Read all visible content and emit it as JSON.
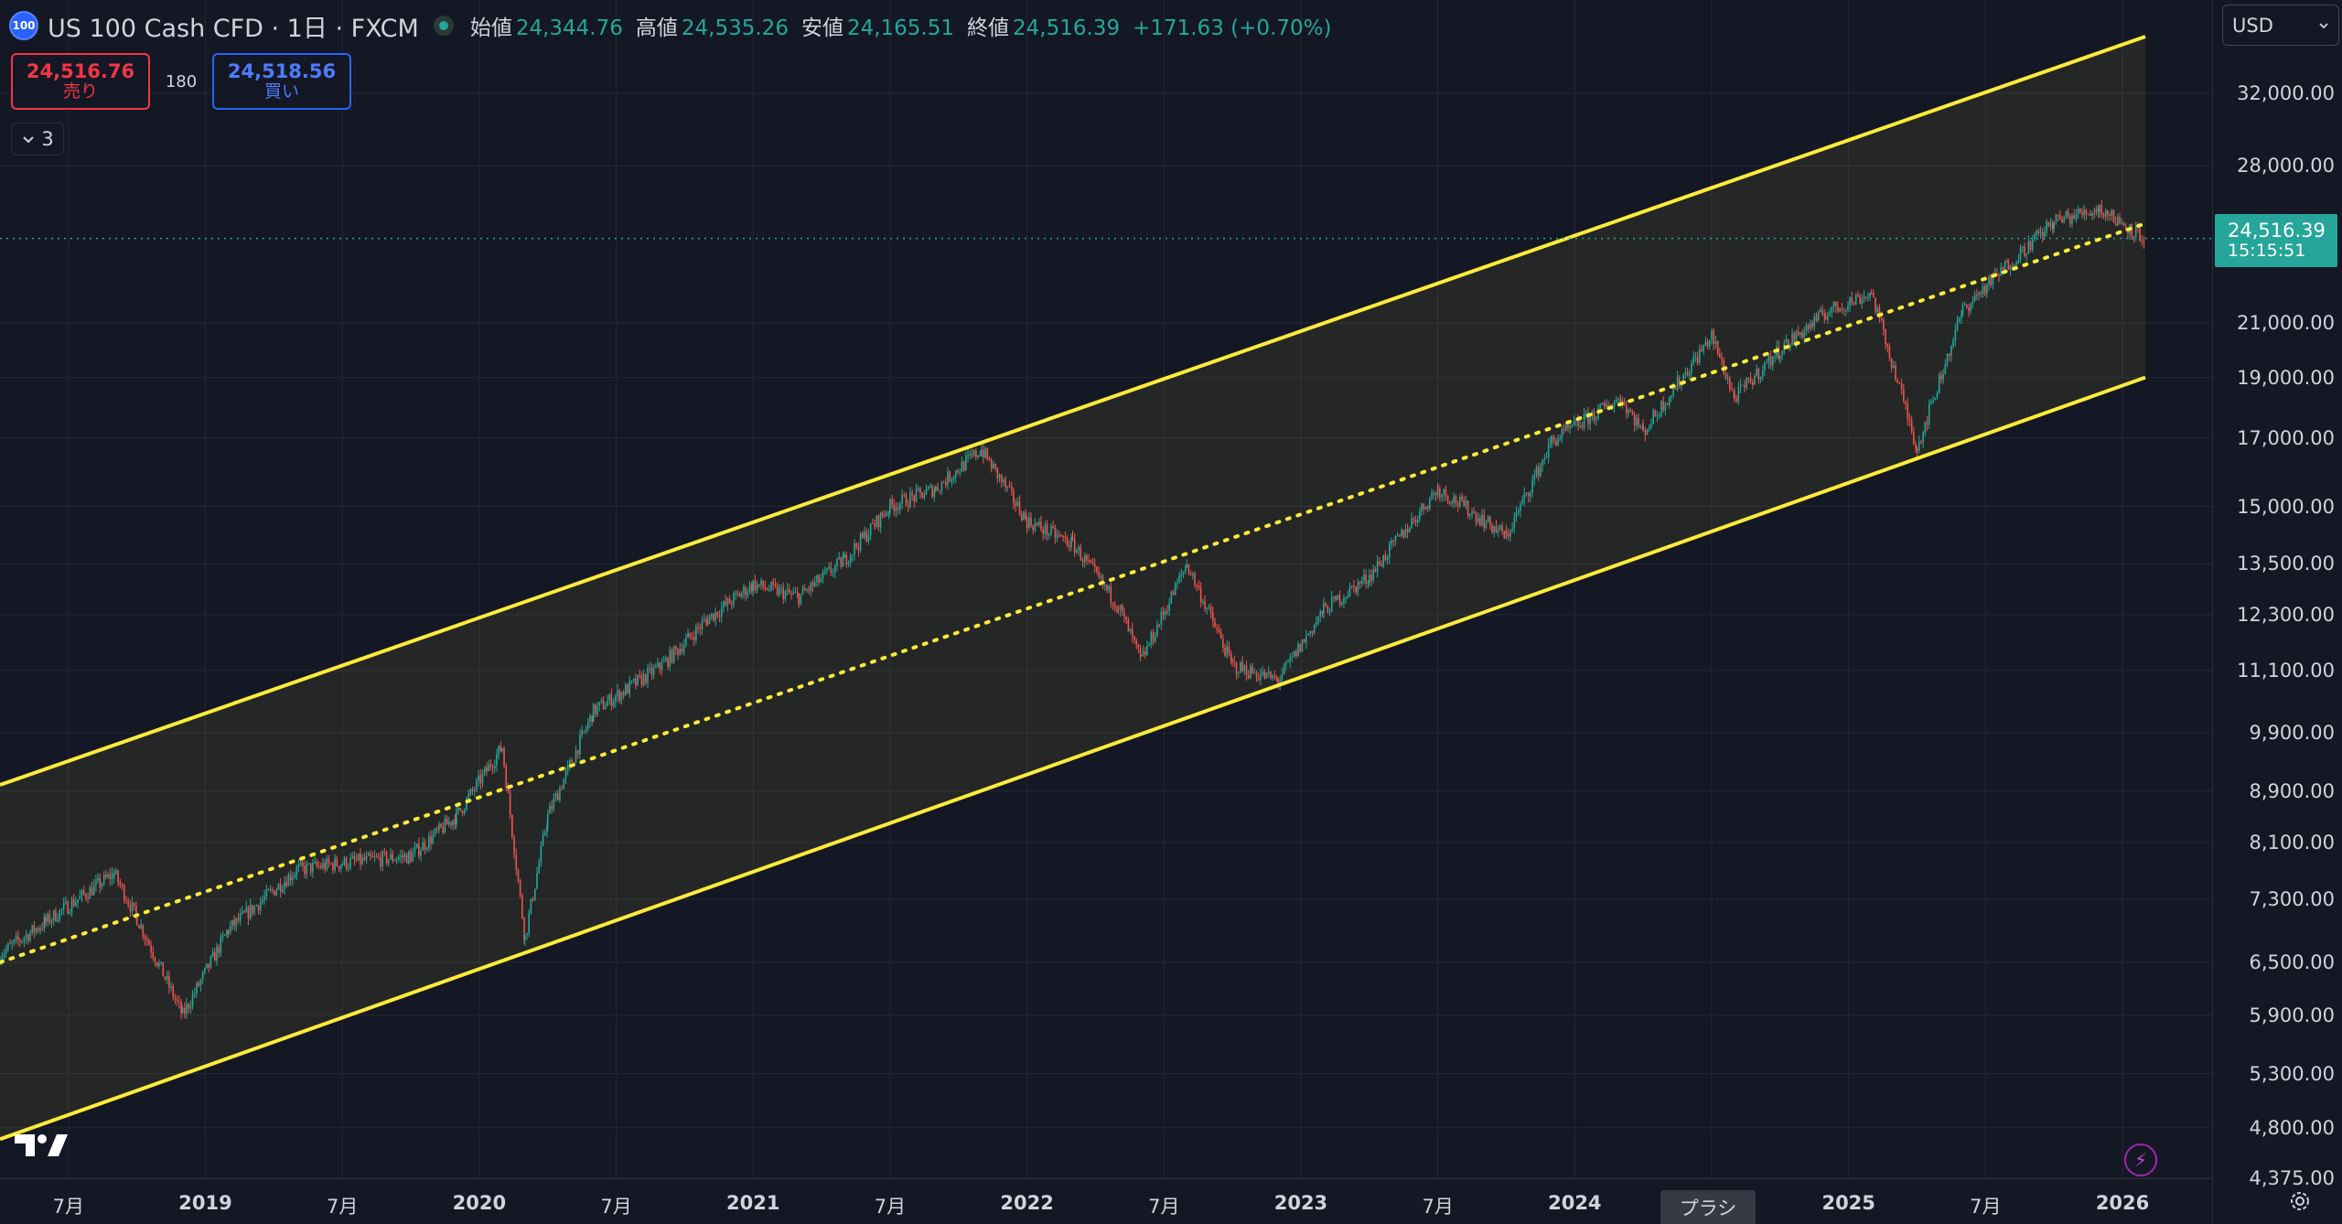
{
  "header": {
    "symbol_logo": "100",
    "symbol_title": "US 100 Cash CFD · 1日 · FXCM",
    "open_label": "始値",
    "open_value": "24,344.76",
    "high_label": "高値",
    "high_value": "24,535.26",
    "low_label": "安値",
    "low_value": "24,165.51",
    "close_label": "終値",
    "close_value": "24,516.39",
    "change": "+171.63 (+0.70%)",
    "status_color": "#26a69a"
  },
  "trade": {
    "sell_price": "24,516.76",
    "sell_label": "売り",
    "spread": "180",
    "buy_price": "24,518.56",
    "buy_label": "買い"
  },
  "indicators": {
    "collapse_icon": "chevron-down-icon",
    "count": "3"
  },
  "price_axis": {
    "currency": "USD",
    "ticks": [
      "32,000.00",
      "28,000.00",
      "21,000.00",
      "19,000.00",
      "17,000.00",
      "15,000.00",
      "13,500.00",
      "12,300.00",
      "11,100.00",
      "9,900.00",
      "8,900.00",
      "8,100.00",
      "7,300.00",
      "6,500.00",
      "5,900.00",
      "5,300.00",
      "4,800.00",
      "4,375.00"
    ],
    "last_price": "24,516.39",
    "countdown": "15:15:51"
  },
  "time_axis": {
    "ticks": [
      "7月",
      "2019",
      "7月",
      "2020",
      "7月",
      "2021",
      "7月",
      "2022",
      "7月",
      "2023",
      "7月",
      "2024",
      "7月",
      "2025",
      "7月",
      "2026"
    ],
    "hover_label": "プラシ"
  },
  "colors": {
    "background": "#141824",
    "up": "#26a69a",
    "down": "#ef5350",
    "channel": "#ffeb3b",
    "grid": "#232735",
    "sell": "#f23645",
    "buy": "#2962ff"
  },
  "chart_data": {
    "type": "candlestick",
    "scale": "log",
    "x_range": [
      "2018-04",
      "2026-02"
    ],
    "y_range": [
      4375,
      35500
    ],
    "series": [
      {
        "name": "US 100 Cash CFD",
        "x": [
          "2018-04",
          "2018-06",
          "2018-09",
          "2018-10",
          "2018-12",
          "2019-02",
          "2019-05",
          "2019-07",
          "2019-10",
          "2019-12",
          "2020-02",
          "2020-03",
          "2020-04",
          "2020-06",
          "2020-09",
          "2020-11",
          "2021-01",
          "2021-03",
          "2021-05",
          "2021-07",
          "2021-09",
          "2021-11",
          "2022-01",
          "2022-03",
          "2022-05",
          "2022-06",
          "2022-08",
          "2022-10",
          "2022-12",
          "2023-02",
          "2023-04",
          "2023-07",
          "2023-10",
          "2023-12",
          "2024-03",
          "2024-04",
          "2024-07",
          "2024-08",
          "2024-10",
          "2024-12",
          "2025-02",
          "2025-04",
          "2025-06",
          "2025-08",
          "2025-10",
          "2025-12",
          "2026-02"
        ],
        "close": [
          6600,
          7000,
          7650,
          7050,
          5900,
          6900,
          7700,
          7800,
          7900,
          8500,
          9650,
          6800,
          8500,
          10300,
          11200,
          12200,
          13000,
          12700,
          13600,
          15000,
          15500,
          16650,
          14600,
          14000,
          12500,
          11300,
          13500,
          11200,
          10900,
          12400,
          13200,
          15500,
          14200,
          16900,
          18300,
          17200,
          20500,
          18300,
          20000,
          21400,
          22200,
          16700,
          21500,
          23400,
          25300,
          25900,
          24516
        ]
      }
    ],
    "overlays": [
      {
        "name": "channel-upper",
        "start": [
          "2018-04",
          9000
        ],
        "end": [
          "2026-02",
          35500
        ]
      },
      {
        "name": "channel-mid",
        "style": "dotted",
        "start": [
          "2018-04",
          6500
        ],
        "end": [
          "2026-02",
          25200
        ]
      },
      {
        "name": "channel-lower",
        "start": [
          "2018-04",
          4700
        ],
        "end": [
          "2026-02",
          19000
        ]
      }
    ]
  }
}
